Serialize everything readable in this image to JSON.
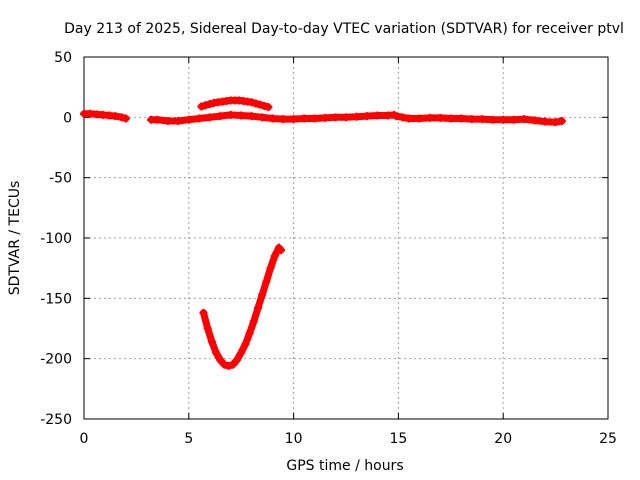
{
  "chart_data": {
    "type": "scatter",
    "title": "Day 213 of 2025, Sidereal Day-to-day VTEC variation (SDTVAR) for receiver ptvl",
    "xlabel": "GPS time / hours",
    "ylabel": "SDTVAR / TECUs",
    "xlim": [
      0,
      25
    ],
    "ylim": [
      -250,
      50
    ],
    "xticks": [
      0,
      5,
      10,
      15,
      20,
      25
    ],
    "yticks": [
      -250,
      -200,
      -150,
      -100,
      -50,
      0,
      50
    ],
    "grid": true,
    "legend": "none",
    "color": "#ff0000",
    "series": [
      {
        "x": [
          0.0,
          0.3,
          0.6,
          0.9,
          1.2,
          1.5,
          1.8,
          2.0
        ],
        "y": [
          3,
          3,
          2.5,
          2,
          1.5,
          1,
          0,
          -1
        ]
      },
      {
        "x": [
          3.2,
          3.5,
          4.0,
          4.5,
          5.0,
          5.5,
          6.0,
          6.5,
          7.0,
          7.5,
          8.0,
          8.5,
          9.0,
          9.5,
          10.0,
          10.5,
          11.0,
          11.5,
          12.0,
          12.5,
          13.0,
          13.5,
          14.0,
          14.5,
          14.8
        ],
        "y": [
          -2,
          -2,
          -3,
          -3,
          -2,
          -1,
          0,
          1,
          2,
          1.5,
          1,
          0,
          -1,
          -1.5,
          -1.5,
          -1,
          -1,
          -0.5,
          0,
          0,
          0.5,
          1,
          1.5,
          1.5,
          2
        ]
      },
      {
        "x": [
          14.9,
          15.2,
          15.5,
          16.0,
          16.5,
          17.0,
          17.5,
          18.0,
          18.5,
          19.0,
          19.5,
          20.0,
          20.5,
          21.0,
          21.5,
          22.0,
          22.5,
          22.8
        ],
        "y": [
          1,
          0,
          -1,
          -1,
          -0.5,
          -0.5,
          -1,
          -1,
          -1.5,
          -1.5,
          -2,
          -2,
          -2,
          -1.5,
          -2.5,
          -3.5,
          -4,
          -3
        ]
      },
      {
        "x": [
          5.6,
          5.8,
          6.0,
          6.2,
          6.4,
          6.6,
          6.8,
          7.0,
          7.2,
          7.4,
          7.6,
          7.8,
          8.0,
          8.2,
          8.4,
          8.6,
          8.8
        ],
        "y": [
          9,
          10,
          11,
          12,
          12.5,
          13,
          13.5,
          14,
          14,
          14,
          13.5,
          13,
          12.5,
          11.5,
          10.5,
          9.5,
          8.5
        ]
      },
      {
        "x": [
          5.7,
          5.9,
          6.1,
          6.3,
          6.5,
          6.7,
          6.9,
          7.1,
          7.3,
          7.5,
          7.7,
          7.9,
          8.1,
          8.3,
          8.5,
          8.7,
          8.9,
          9.1,
          9.3,
          9.4
        ],
        "y": [
          -162,
          -175,
          -186,
          -195,
          -201,
          -205,
          -206,
          -205,
          -201,
          -195,
          -188,
          -179,
          -169,
          -158,
          -147,
          -136,
          -125,
          -115,
          -108,
          -110
        ]
      }
    ]
  }
}
